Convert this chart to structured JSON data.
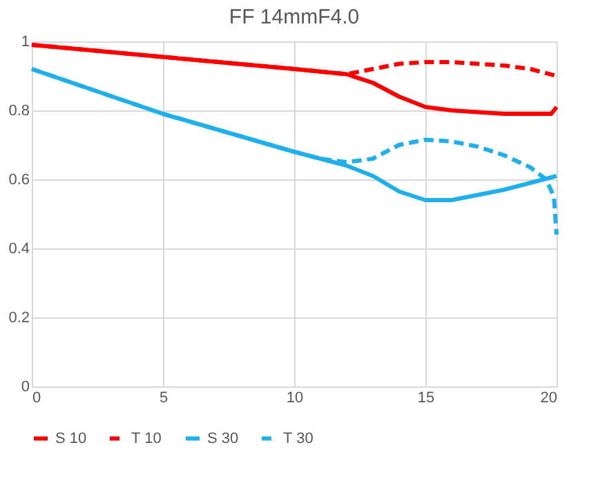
{
  "chart_data": {
    "type": "line",
    "title": "FF 14mmF4.0",
    "xlim": [
      0,
      20
    ],
    "xticks": [
      0,
      5,
      10,
      15,
      20
    ],
    "ylim": [
      0,
      1
    ],
    "yticks": [
      0,
      0.2,
      0.4,
      0.6,
      0.8,
      1
    ],
    "grid": true,
    "legend": "bottom",
    "marker": "none",
    "series": [
      {
        "name": "S 10",
        "color": "#ff0000",
        "line_style": "solid",
        "x": [
          0,
          5,
          10,
          12,
          13,
          14,
          15,
          16,
          17,
          18,
          19,
          19.8,
          20
        ],
        "values": [
          0.99,
          0.955,
          0.92,
          0.905,
          0.88,
          0.84,
          0.81,
          0.8,
          0.795,
          0.79,
          0.79,
          0.79,
          0.81
        ]
      },
      {
        "name": "T 10",
        "color": "#ff0000",
        "line_style": "dashed",
        "x": [
          0,
          5,
          10,
          12,
          13,
          14,
          15,
          16,
          17,
          18,
          19,
          20
        ],
        "values": [
          0.99,
          0.955,
          0.92,
          0.905,
          0.92,
          0.935,
          0.94,
          0.94,
          0.935,
          0.93,
          0.92,
          0.9
        ]
      },
      {
        "name": "S 30",
        "color": "#1fb0ec",
        "line_style": "solid",
        "x": [
          0,
          5,
          10,
          12,
          13,
          14,
          15,
          16,
          17,
          18,
          19,
          20
        ],
        "values": [
          0.92,
          0.79,
          0.68,
          0.64,
          0.61,
          0.565,
          0.54,
          0.54,
          0.555,
          0.57,
          0.59,
          0.61
        ]
      },
      {
        "name": "T 30",
        "color": "#1fb0ec",
        "line_style": "dashed",
        "x": [
          0,
          5,
          10,
          11,
          12,
          13,
          14,
          15,
          16,
          17,
          18,
          19,
          19.6,
          19.9,
          20
        ],
        "values": [
          0.92,
          0.79,
          0.68,
          0.66,
          0.65,
          0.66,
          0.7,
          0.715,
          0.71,
          0.695,
          0.67,
          0.635,
          0.6,
          0.55,
          0.44
        ]
      }
    ]
  }
}
